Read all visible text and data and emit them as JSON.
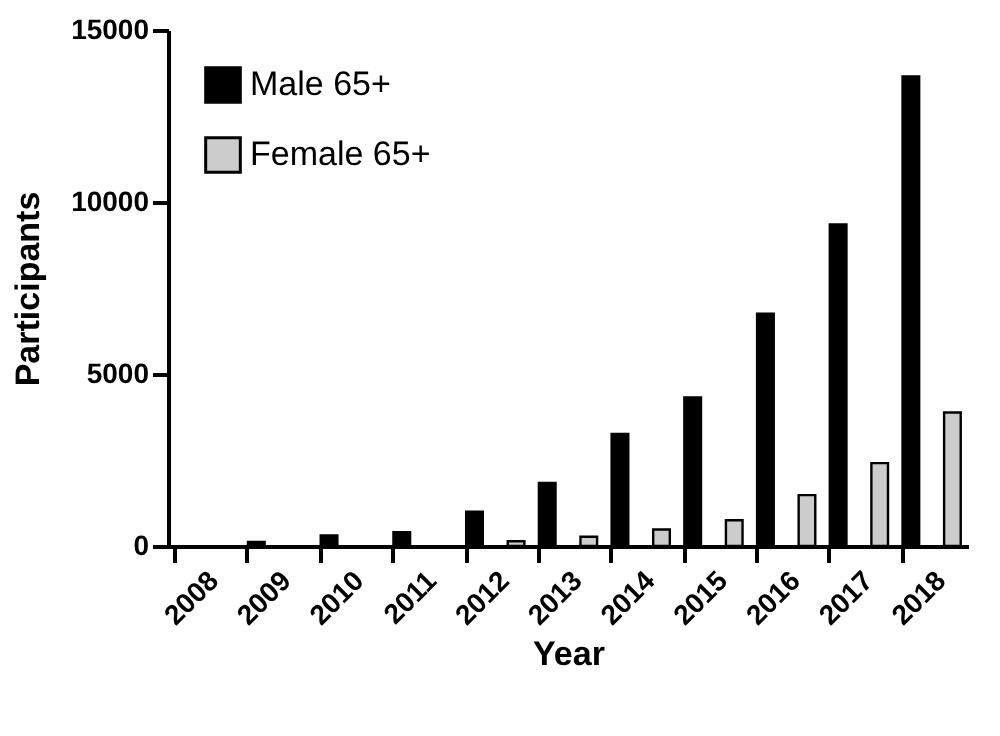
{
  "chart_data": {
    "type": "bar",
    "xlabel": "Year",
    "ylabel": "Participants",
    "categories": [
      "2008",
      "2009",
      "2010",
      "2011",
      "2012",
      "2013",
      "2014",
      "2015",
      "2016",
      "2017",
      "2018"
    ],
    "series": [
      {
        "name": "Male 65+",
        "color": "#000000",
        "values": [
          null,
          120,
          310,
          400,
          1000,
          1830,
          3260,
          4320,
          6750,
          9350,
          13650
        ]
      },
      {
        "name": "Female 65+",
        "color": "#cccccc",
        "values": [
          null,
          null,
          null,
          null,
          140,
          270,
          480,
          750,
          1480,
          2410,
          3880
        ]
      }
    ],
    "ylim": [
      0,
      15000
    ],
    "yticks": [
      0,
      5000,
      10000,
      15000
    ],
    "grid": false,
    "legend": "top left"
  }
}
